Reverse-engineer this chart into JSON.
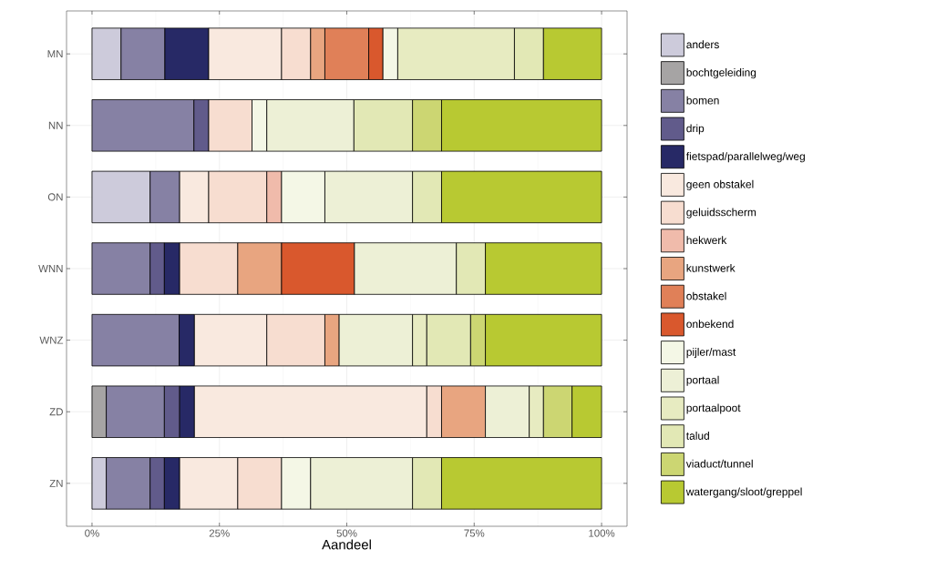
{
  "chart_data": {
    "type": "bar",
    "orientation": "horizontal",
    "stacked": true,
    "xlabel": "Aandeel",
    "categories": [
      "MN",
      "NN",
      "ON",
      "WNN",
      "WNZ",
      "ZD",
      "ZN"
    ],
    "xlim": [
      -5,
      105
    ],
    "xticks": [
      {
        "value": 0,
        "label": "0%"
      },
      {
        "value": 25,
        "label": "25%"
      },
      {
        "value": 50,
        "label": "50%"
      },
      {
        "value": 75,
        "label": "75%"
      },
      {
        "value": 100,
        "label": "100%"
      }
    ],
    "grid": true,
    "legend": "right",
    "series": [
      {
        "name": "anders",
        "color": "#cdcbdb",
        "values": [
          5.7,
          null,
          11.4,
          null,
          null,
          null,
          2.8
        ]
      },
      {
        "name": "bochtgeleiding",
        "color": "#a6a4a4",
        "values": [
          null,
          null,
          null,
          null,
          null,
          2.8,
          null
        ]
      },
      {
        "name": "bomen",
        "color": "#8681a4",
        "values": [
          8.6,
          20.0,
          5.8,
          11.4,
          17.1,
          11.4,
          8.6
        ]
      },
      {
        "name": "drip",
        "color": "#615b8b",
        "values": [
          null,
          2.9,
          null,
          2.8,
          null,
          3.0,
          2.8
        ]
      },
      {
        "name": "fietspad/parallelweg/weg",
        "color": "#272966",
        "values": [
          8.6,
          null,
          null,
          3.0,
          3.0,
          2.9,
          3.0
        ]
      },
      {
        "name": "geen obstakel",
        "color": "#f9e9df",
        "values": [
          14.3,
          null,
          5.7,
          null,
          14.2,
          45.6,
          11.4
        ]
      },
      {
        "name": "geluidsscherm",
        "color": "#f7ddd0",
        "values": [
          5.7,
          8.5,
          11.4,
          11.4,
          11.4,
          2.9,
          8.6
        ]
      },
      {
        "name": "hekwerk",
        "color": "#f0bbab",
        "values": [
          null,
          null,
          2.9,
          null,
          null,
          null,
          null
        ]
      },
      {
        "name": "kunstwerk",
        "color": "#e8a580",
        "values": [
          2.8,
          null,
          null,
          8.6,
          2.8,
          8.6,
          null
        ]
      },
      {
        "name": "obstakel",
        "color": "#e08058",
        "values": [
          8.6,
          null,
          null,
          null,
          null,
          null,
          null
        ]
      },
      {
        "name": "onbekend",
        "color": "#d9582d",
        "values": [
          2.8,
          null,
          null,
          14.3,
          null,
          null,
          null
        ]
      },
      {
        "name": "pijler/mast",
        "color": "#f4f7e6",
        "values": [
          2.9,
          2.9,
          8.5,
          null,
          null,
          null,
          5.7
        ]
      },
      {
        "name": "portaal",
        "color": "#edf0d6",
        "values": [
          null,
          17.1,
          17.2,
          20.0,
          14.4,
          8.6,
          20.0
        ]
      },
      {
        "name": "portaalpoot",
        "color": "#e7ebc1",
        "values": [
          22.9,
          null,
          null,
          null,
          2.8,
          2.8,
          null
        ]
      },
      {
        "name": "talud",
        "color": "#e2e8b5",
        "values": [
          5.7,
          11.5,
          5.7,
          5.7,
          8.6,
          null,
          5.7
        ]
      },
      {
        "name": "viaduct/tunnel",
        "color": "#ccd672",
        "values": [
          null,
          5.7,
          null,
          null,
          2.9,
          5.6,
          null
        ]
      },
      {
        "name": "watergang/sloot/greppel",
        "color": "#b8c932",
        "values": [
          11.4,
          31.4,
          31.4,
          22.8,
          22.8,
          5.8,
          31.4
        ]
      }
    ]
  }
}
